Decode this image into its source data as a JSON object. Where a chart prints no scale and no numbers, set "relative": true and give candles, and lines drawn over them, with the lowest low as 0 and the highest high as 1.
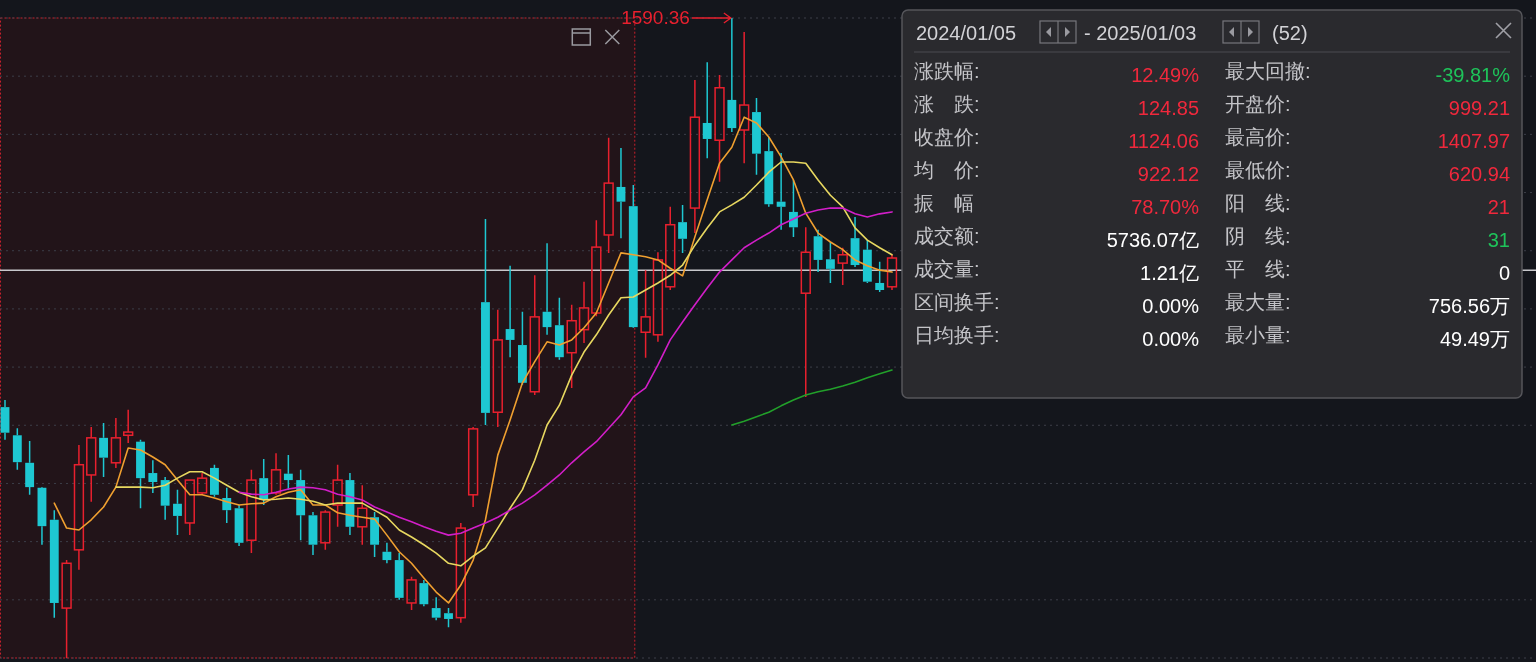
{
  "chart_data": [
    {
      "type": "candlestick",
      "relative": true,
      "grid": true,
      "colors": [
        "#1ec8d2",
        "#1ec8d2",
        "#1ec8d2",
        "#1ec8d2",
        "#1ec8d2",
        "#e8202e",
        "#e8202e",
        "#e8202e",
        "#1ec8d2",
        "#e8202e",
        "#e8202e",
        "#1ec8d2",
        "#1ec8d2",
        "#1ec8d2",
        "#1ec8d2",
        "#e8202e",
        "#e8202e",
        "#1ec8d2",
        "#1ec8d2",
        "#1ec8d2",
        "#e8202e",
        "#1ec8d2",
        "#e8202e",
        "#1ec8d2",
        "#1ec8d2",
        "#1ec8d2",
        "#e8202e",
        "#e8202e",
        "#1ec8d2",
        "#e8202e",
        "#1ec8d2",
        "#1ec8d2",
        "#1ec8d2",
        "#e8202e",
        "#1ec8d2",
        "#1ec8d2",
        "#1ec8d2",
        "#e8202e",
        "#e8202e",
        "#1ec8d2",
        "#e8202e",
        "#1ec8d2",
        "#1ec8d2",
        "#e8202e",
        "#1ec8d2",
        "#1ec8d2",
        "#e8202e",
        "#e8202e",
        "#e8202e",
        "#e8202e",
        "#1ec8d2",
        "#1ec8d2",
        "#e8202e",
        "#e8202e",
        "#e8202e",
        "#1ec8d2",
        "#e8202e",
        "#1ec8d2",
        "#e8202e",
        "#1ec8d2",
        "#e8202e",
        "#1ec8d2",
        "#1ec8d2",
        "#1ec8d2",
        "#1ec8d2",
        "#e8202e",
        "#1ec8d2",
        "#1ec8d2",
        "#e8202e",
        "#1ec8d2",
        "#1ec8d2",
        "#1ec8d2",
        "#e8202e"
      ],
      "ohlc": [
        [
          0.392,
          0.403,
          0.341,
          0.352
        ],
        [
          0.348,
          0.359,
          0.294,
          0.306
        ],
        [
          0.305,
          0.339,
          0.255,
          0.267
        ],
        [
          0.266,
          0.267,
          0.177,
          0.206
        ],
        [
          0.216,
          0.231,
          0.063,
          0.086
        ],
        [
          0.078,
          0.153,
          0,
          0.148
        ],
        [
          0.169,
          0.333,
          0.138,
          0.302
        ],
        [
          0.286,
          0.361,
          0.244,
          0.344
        ],
        [
          0.344,
          0.367,
          0.283,
          0.313
        ],
        [
          0.305,
          0.375,
          0.297,
          0.344
        ],
        [
          0.348,
          0.388,
          0.336,
          0.353
        ],
        [
          0.338,
          0.341,
          0.234,
          0.281
        ],
        [
          0.289,
          0.309,
          0.258,
          0.275
        ],
        [
          0.278,
          0.283,
          0.216,
          0.238
        ],
        [
          0.241,
          0.263,
          0.192,
          0.222
        ],
        [
          0.211,
          0.278,
          0.192,
          0.278
        ],
        [
          0.258,
          0.289,
          0.255,
          0.281
        ],
        [
          0.297,
          0.302,
          0.252,
          0.255
        ],
        [
          0.25,
          0.266,
          0.211,
          0.231
        ],
        [
          0.234,
          0.239,
          0.175,
          0.18
        ],
        [
          0.184,
          0.294,
          0.164,
          0.278
        ],
        [
          0.281,
          0.311,
          0.239,
          0.247
        ],
        [
          0.258,
          0.32,
          0.255,
          0.294
        ],
        [
          0.288,
          0.317,
          0.263,
          0.278
        ],
        [
          0.278,
          0.294,
          0.184,
          0.223
        ],
        [
          0.223,
          0.228,
          0.161,
          0.177
        ],
        [
          0.18,
          0.231,
          0.169,
          0.228
        ],
        [
          0.239,
          0.302,
          0.205,
          0.278
        ],
        [
          0.278,
          0.289,
          0.192,
          0.205
        ],
        [
          0.205,
          0.27,
          0.177,
          0.234
        ],
        [
          0.22,
          0.228,
          0.158,
          0.177
        ],
        [
          0.166,
          0.18,
          0.148,
          0.153
        ],
        [
          0.153,
          0.164,
          0.091,
          0.094
        ],
        [
          0.086,
          0.127,
          0.075,
          0.122
        ],
        [
          0.117,
          0.122,
          0.081,
          0.084
        ],
        [
          0.078,
          0.095,
          0.059,
          0.063
        ],
        [
          0.07,
          0.078,
          0.048,
          0.061
        ],
        [
          0.063,
          0.211,
          0.055,
          0.203
        ],
        [
          0.255,
          0.361,
          0.236,
          0.358
        ],
        [
          0.556,
          0.686,
          0.364,
          0.383
        ],
        [
          0.384,
          0.544,
          0.361,
          0.497
        ],
        [
          0.514,
          0.613,
          0.47,
          0.497
        ],
        [
          0.489,
          0.541,
          0.427,
          0.43
        ],
        [
          0.416,
          0.598,
          0.411,
          0.533
        ],
        [
          0.541,
          0.648,
          0.505,
          0.517
        ],
        [
          0.52,
          0.563,
          0.466,
          0.47
        ],
        [
          0.477,
          0.552,
          0.422,
          0.527
        ],
        [
          0.513,
          0.588,
          0.492,
          0.547
        ],
        [
          0.539,
          0.684,
          0.534,
          0.642
        ],
        [
          0.661,
          0.813,
          0.633,
          0.742
        ],
        [
          0.736,
          0.797,
          0.656,
          0.713
        ],
        [
          0.706,
          0.739,
          0.516,
          0.517
        ],
        [
          0.509,
          0.606,
          0.469,
          0.533
        ],
        [
          0.505,
          0.634,
          0.494,
          0.622
        ],
        [
          0.58,
          0.705,
          0.575,
          0.677
        ],
        [
          0.681,
          0.708,
          0.633,
          0.655
        ],
        [
          0.703,
          0.903,
          0.664,
          0.845
        ],
        [
          0.836,
          0.931,
          0.781,
          0.811
        ],
        [
          0.809,
          0.911,
          0.744,
          0.891
        ],
        [
          0.872,
          1,
          0.822,
          0.828
        ],
        [
          0.825,
          0.978,
          0.773,
          0.864
        ],
        [
          0.853,
          0.875,
          0.755,
          0.788
        ],
        [
          0.792,
          0.814,
          0.705,
          0.709
        ],
        [
          0.713,
          0.789,
          0.669,
          0.705
        ],
        [
          0.697,
          0.747,
          0.658,
          0.673
        ],
        [
          0.57,
          0.673,
          0.408,
          0.634
        ],
        [
          0.659,
          0.669,
          0.603,
          0.622
        ],
        [
          0.623,
          0.65,
          0.586,
          0.608
        ],
        [
          0.617,
          0.641,
          0.583,
          0.63
        ],
        [
          0.656,
          0.689,
          0.611,
          0.614
        ],
        [
          0.638,
          0.653,
          0.586,
          0.588
        ],
        [
          0.586,
          0.619,
          0.572,
          0.575
        ],
        [
          0.58,
          0.63,
          0.575,
          0.625
        ]
      ],
      "series": [
        {
          "type": "line",
          "color": "#f0a030",
          "values": [
            null,
            null,
            null,
            null,
            0.242,
            0.203,
            0.2,
            0.216,
            0.236,
            0.267,
            0.328,
            0.325,
            0.314,
            0.302,
            0.278,
            0.255,
            0.255,
            0.25,
            0.244,
            0.239,
            0.241,
            0.242,
            0.252,
            0.259,
            0.263,
            0.239,
            0.239,
            0.227,
            0.223,
            0.22,
            0.217,
            0.192,
            0.166,
            0.148,
            0.125,
            0.103,
            0.086,
            0.114,
            0.153,
            0.216,
            0.317,
            0.372,
            0.43,
            0.463,
            0.494,
            0.489,
            0.497,
            0.516,
            0.539,
            0.586,
            0.633,
            0.63,
            0.627,
            0.622,
            0.609,
            0.597,
            0.658,
            0.716,
            0.773,
            0.798,
            0.845,
            0.836,
            0.814,
            0.783,
            0.747,
            0.695,
            0.664,
            0.65,
            0.638,
            0.622,
            0.613,
            0.606,
            0.603
          ]
        },
        {
          "type": "line",
          "color": "#e8d860",
          "values": [
            null,
            null,
            null,
            null,
            null,
            null,
            null,
            null,
            null,
            0.267,
            0.267,
            0.267,
            0.266,
            0.27,
            0.281,
            0.291,
            0.291,
            0.281,
            0.27,
            0.259,
            0.252,
            0.247,
            0.248,
            0.25,
            0.248,
            0.245,
            0.239,
            0.242,
            0.242,
            0.242,
            0.231,
            0.22,
            0.2,
            0.189,
            0.177,
            0.164,
            0.148,
            0.144,
            0.159,
            0.172,
            0.203,
            0.234,
            0.263,
            0.309,
            0.364,
            0.395,
            0.442,
            0.478,
            0.505,
            0.536,
            0.563,
            0.564,
            0.575,
            0.586,
            0.598,
            0.614,
            0.645,
            0.672,
            0.697,
            0.708,
            0.72,
            0.739,
            0.759,
            0.775,
            0.775,
            0.773,
            0.747,
            0.723,
            0.705,
            0.672,
            0.653,
            0.641,
            0.63
          ]
        },
        {
          "type": "line",
          "color": "#d21ec8",
          "values": [
            null,
            null,
            null,
            null,
            null,
            null,
            null,
            null,
            null,
            null,
            null,
            null,
            null,
            null,
            null,
            null,
            null,
            null,
            null,
            0.259,
            0.256,
            0.255,
            0.259,
            0.264,
            0.267,
            0.266,
            0.263,
            0.256,
            0.252,
            0.247,
            0.236,
            0.228,
            0.22,
            0.213,
            0.205,
            0.198,
            0.192,
            0.195,
            0.203,
            0.211,
            0.22,
            0.231,
            0.242,
            0.255,
            0.27,
            0.286,
            0.305,
            0.322,
            0.338,
            0.359,
            0.38,
            0.408,
            0.422,
            0.458,
            0.497,
            0.525,
            0.552,
            0.578,
            0.603,
            0.622,
            0.641,
            0.653,
            0.664,
            0.677,
            0.686,
            0.695,
            0.7,
            0.703,
            0.703,
            0.694,
            0.689,
            0.694,
            0.697
          ]
        },
        {
          "type": "line",
          "color": "#22a02a",
          "values": [
            null,
            null,
            null,
            null,
            null,
            null,
            null,
            null,
            null,
            null,
            null,
            null,
            null,
            null,
            null,
            null,
            null,
            null,
            null,
            null,
            null,
            null,
            null,
            null,
            null,
            null,
            null,
            null,
            null,
            null,
            null,
            null,
            null,
            null,
            null,
            null,
            null,
            null,
            null,
            null,
            null,
            null,
            null,
            null,
            null,
            null,
            null,
            null,
            null,
            null,
            null,
            null,
            null,
            null,
            null,
            null,
            null,
            null,
            null,
            0.364,
            0.37,
            0.377,
            0.384,
            0.394,
            0.403,
            0.411,
            0.416,
            0.42,
            0.425,
            0.431,
            0.438,
            0.444,
            0.45
          ]
        }
      ],
      "ref_lines": [
        {
          "axis": "y",
          "value": 0.606,
          "color": "#c8c8cc"
        }
      ],
      "annotations": [
        "1590.36"
      ]
    },
    {
      "type": "other",
      "annotations": [
        "2024/01/05",
        "- 2025/01/03",
        "(52)",
        "涨跌幅:",
        "12.49%",
        "涨　跌:",
        "124.85",
        "收盘价:",
        "1124.06",
        "均　价:",
        "922.12",
        "振　幅",
        "78.70%",
        "成交额:",
        "5736.07亿",
        "成交量:",
        "1.21亿",
        "区间换手:",
        "0.00%",
        "日均换手:",
        "0.00%",
        "最大回撤:",
        "-39.81%",
        "开盘价:",
        "999.21",
        "最高价:",
        "1407.97",
        "最低价:",
        "620.94",
        "阳　线:",
        "21",
        "阴　线:",
        "31",
        "平　线:",
        "0",
        "最大量:",
        "756.56万",
        "最小量:",
        "49.49万"
      ],
      "colors": [
        "#d2d2d6",
        "#d2d2d6",
        "#d2d2d6",
        "#c4c4c8",
        "#f0283c",
        "#c4c4c8",
        "#f0283c",
        "#c4c4c8",
        "#f0283c",
        "#c4c4c8",
        "#f0283c",
        "#c4c4c8",
        "#f0283c",
        "#c4c4c8",
        "#ffffff",
        "#c4c4c8",
        "#ffffff",
        "#c4c4c8",
        "#ffffff",
        "#c4c4c8",
        "#ffffff",
        "#c4c4c8",
        "#1ec35a",
        "#c4c4c8",
        "#f0283c",
        "#c4c4c8",
        "#f0283c",
        "#c4c4c8",
        "#f0283c",
        "#c4c4c8",
        "#f0283c",
        "#c4c4c8",
        "#1ec35a",
        "#c4c4c8",
        "#ffffff",
        "#c4c4c8",
        "#ffffff",
        "#c4c4c8",
        "#ffffff"
      ]
    }
  ]
}
